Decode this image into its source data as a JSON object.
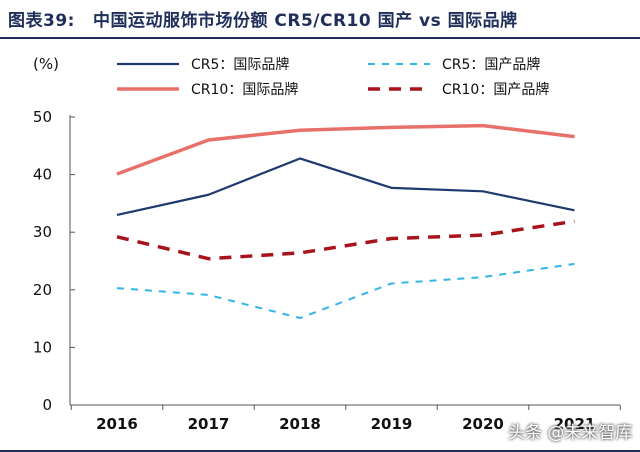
{
  "header": {
    "figure_label": "图表39:",
    "title": "中国运动服饰市场份额 CR5/CR10 国产 vs 国际品牌"
  },
  "watermark": "头条 @未来智库",
  "chart_data": {
    "type": "line",
    "title": "中国运动服饰市场份额 CR5/CR10 国产 vs 国际品牌",
    "ylabel": "(%)",
    "xlabel": "",
    "categories": [
      "2016",
      "2017",
      "2018",
      "2019",
      "2020",
      "2021"
    ],
    "ylim": [
      0,
      50
    ],
    "yticks": [
      0,
      10,
      20,
      30,
      40,
      50
    ],
    "legend_position": "top",
    "series": [
      {
        "name": "CR5：国际品牌",
        "color": "#1f3a6e",
        "style": "solid",
        "values": [
          33.0,
          36.5,
          42.8,
          37.7,
          37.1,
          33.8
        ]
      },
      {
        "name": "CR10：国际品牌",
        "color": "#e8706b",
        "style": "solid",
        "values": [
          40.1,
          46.0,
          47.7,
          48.2,
          48.5,
          46.6
        ]
      },
      {
        "name": "CR5：国产品牌",
        "color": "#33b5e5",
        "style": "dashed",
        "values": [
          20.3,
          19.1,
          15.1,
          21.1,
          22.2,
          24.5
        ]
      },
      {
        "name": "CR10：国产品牌",
        "color": "#a8141c",
        "style": "dashed-bold",
        "values": [
          29.2,
          25.4,
          26.4,
          28.9,
          29.5,
          31.9
        ]
      }
    ]
  }
}
